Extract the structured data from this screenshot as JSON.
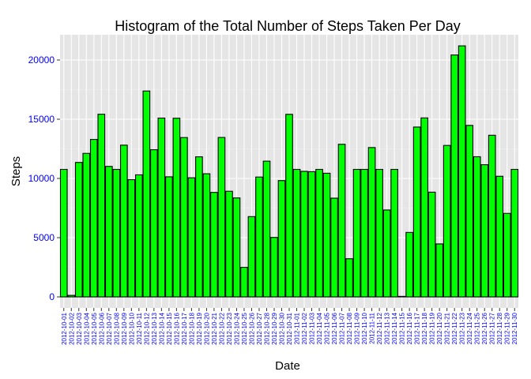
{
  "chart_data": {
    "type": "bar",
    "title": "Histogram of the Total Number of Steps Taken Per Day",
    "xlabel": "Date",
    "ylabel": "Steps",
    "ylim": [
      0,
      22200
    ],
    "yticks": [
      0,
      5000,
      10000,
      15000,
      20000
    ],
    "grid": true,
    "colors": {
      "bar_fill": "#00ff00",
      "bar_stroke": "#000000",
      "panel_bg": "#e5e5e5",
      "grid_major": "#ffffff",
      "tick_label": "#0000ff"
    },
    "categories": [
      "2012-10-01",
      "2012-10-02",
      "2012-10-03",
      "2012-10-04",
      "2012-10-05",
      "2012-10-06",
      "2012-10-07",
      "2012-10-08",
      "2012-10-09",
      "2012-10-10",
      "2012-10-11",
      "2012-10-12",
      "2012-10-13",
      "2012-10-14",
      "2012-10-15",
      "2012-10-16",
      "2012-10-17",
      "2012-10-18",
      "2012-10-19",
      "2012-10-20",
      "2012-10-21",
      "2012-10-22",
      "2012-10-23",
      "2012-10-24",
      "2012-10-25",
      "2012-10-26",
      "2012-10-27",
      "2012-10-28",
      "2012-10-29",
      "2012-10-30",
      "2012-10-31",
      "2012-11-01",
      "2012-11-02",
      "2012-11-03",
      "2012-11-04",
      "2012-11-05",
      "2012-11-06",
      "2012-11-07",
      "2012-11-08",
      "2012-11-09",
      "2012-11-10",
      "2012-11-11",
      "2012-11-12",
      "2012-11-13",
      "2012-11-14",
      "2012-11-15",
      "2012-11-16",
      "2012-11-17",
      "2012-11-18",
      "2012-11-19",
      "2012-11-20",
      "2012-11-21",
      "2012-11-22",
      "2012-11-23",
      "2012-11-24",
      "2012-11-25",
      "2012-11-26",
      "2012-11-27",
      "2012-11-28",
      "2012-11-29",
      "2012-11-30"
    ],
    "values": [
      10766,
      126,
      11352,
      12116,
      13294,
      15420,
      11015,
      10766,
      12811,
      9900,
      10304,
      17382,
      12426,
      15098,
      10139,
      15084,
      13452,
      10056,
      11829,
      10395,
      8821,
      13460,
      8918,
      8355,
      2492,
      6778,
      10119,
      11458,
      5018,
      9819,
      15414,
      10766,
      10600,
      10571,
      10766,
      10439,
      8334,
      12883,
      3219,
      10766,
      10766,
      12608,
      10765,
      7336,
      10766,
      41,
      5441,
      14339,
      15110,
      8841,
      4472,
      12787,
      20427,
      21194,
      14478,
      11834,
      11162,
      13646,
      10183,
      7047,
      10766
    ]
  }
}
